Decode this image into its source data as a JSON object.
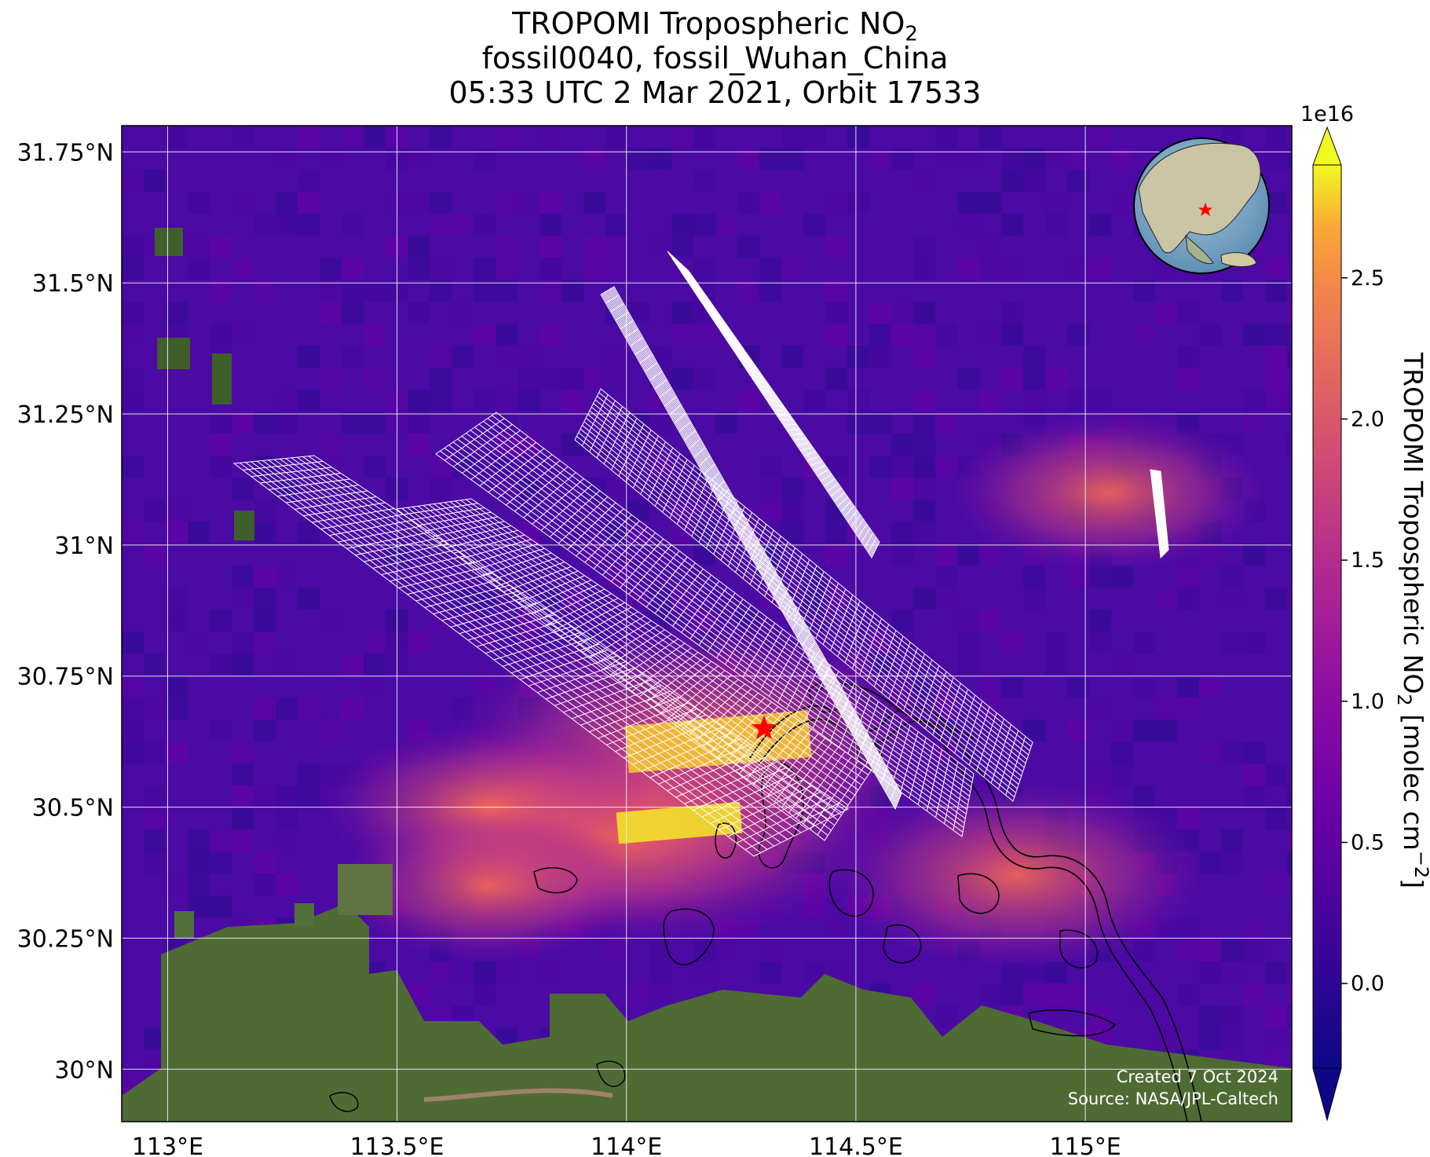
{
  "title": {
    "line1_main": "TROPOMI Tropospheric NO",
    "line1_sub": "2",
    "line2": "fossil0040, fossil_Wuhan_China",
    "line3": "05:33 UTC 2 Mar 2021, Orbit 17533"
  },
  "map": {
    "lon_range": [
      112.9,
      115.45
    ],
    "lat_range": [
      29.9,
      31.8
    ],
    "lon_ticks": [
      {
        "value": 113.0,
        "label": "113°E"
      },
      {
        "value": 113.5,
        "label": "113.5°E"
      },
      {
        "value": 114.0,
        "label": "114°E"
      },
      {
        "value": 114.5,
        "label": "114.5°E"
      },
      {
        "value": 115.0,
        "label": "115°E"
      }
    ],
    "lat_ticks": [
      {
        "value": 30.0,
        "label": "30°N"
      },
      {
        "value": 30.25,
        "label": "30.25°N"
      },
      {
        "value": 30.5,
        "label": "30.5°N"
      },
      {
        "value": 30.75,
        "label": "30.75°N"
      },
      {
        "value": 31.0,
        "label": "31°N"
      },
      {
        "value": 31.25,
        "label": "31.25°N"
      },
      {
        "value": 31.5,
        "label": "31.5°N"
      },
      {
        "value": 31.75,
        "label": "31.75°N"
      }
    ],
    "gridlines": true,
    "target_marker": {
      "lon": 114.3,
      "lat": 30.65,
      "color": "#ff0000",
      "icon": "star"
    },
    "inset_globe": {
      "position": "top-right",
      "icon": "globe-locator"
    },
    "plumes": [
      {
        "lon": 114.15,
        "lat": 30.62,
        "value": 2.7
      },
      {
        "lon": 114.05,
        "lat": 30.47,
        "value": 2.6
      },
      {
        "lon": 113.95,
        "lat": 30.45,
        "value": 2.0
      },
      {
        "lon": 113.7,
        "lat": 30.5,
        "value": 1.6
      },
      {
        "lon": 113.7,
        "lat": 30.35,
        "value": 1.4
      },
      {
        "lon": 114.85,
        "lat": 30.37,
        "value": 1.9
      },
      {
        "lon": 115.05,
        "lat": 31.1,
        "value": 1.5
      }
    ]
  },
  "colorbar": {
    "label_main": "TROPOMI Tropospheric NO",
    "label_sub": "2",
    "label_units": " [molec cm",
    "label_exp": "−2",
    "label_close": "]",
    "scale_factor": "1e16",
    "range": [
      -0.3,
      2.9
    ],
    "extend": "both",
    "colormap": "plasma",
    "ticks": [
      {
        "value": 0.0,
        "label": "0.0"
      },
      {
        "value": 0.5,
        "label": "0.5"
      },
      {
        "value": 1.0,
        "label": "1.0"
      },
      {
        "value": 1.5,
        "label": "1.5"
      },
      {
        "value": 2.0,
        "label": "2.0"
      },
      {
        "value": 2.5,
        "label": "2.5"
      }
    ]
  },
  "credits": {
    "created": "Created 7 Oct 2024",
    "source": "Source: NASA/JPL-Caltech"
  }
}
